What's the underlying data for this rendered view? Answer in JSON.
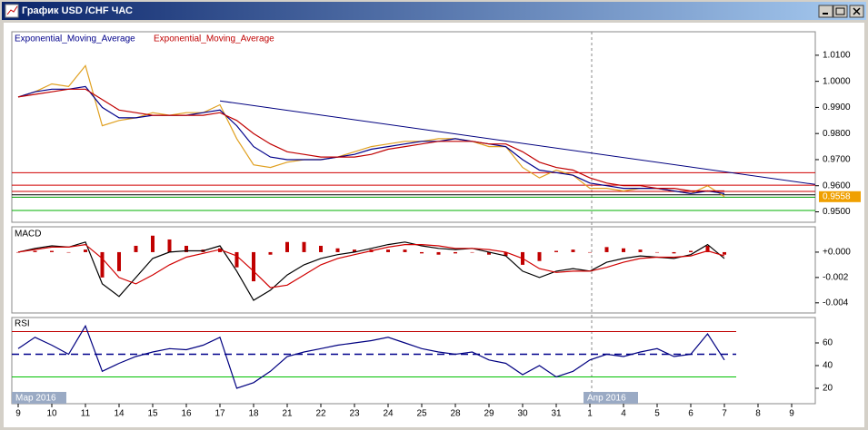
{
  "window": {
    "title": "График USD /CHF ЧАС"
  },
  "x_axis": {
    "categories": [
      "9",
      "10",
      "11",
      "14",
      "15",
      "16",
      "17",
      "18",
      "21",
      "22",
      "23",
      "24",
      "25",
      "28",
      "29",
      "30",
      "31",
      "1",
      "4",
      "5",
      "6",
      "7",
      "8",
      "9"
    ],
    "month_labels": [
      "Мар 2016",
      "Апр 2016"
    ],
    "month_starts": [
      0,
      17
    ],
    "x": [
      0,
      0.5,
      1,
      1.5,
      2,
      2.5,
      3,
      3.5,
      4,
      4.5,
      5,
      5.5,
      6,
      6.5,
      7,
      7.5,
      8,
      8.5,
      9,
      9.5,
      10,
      10.5,
      11,
      11.5,
      12,
      12.5,
      13,
      13.5,
      14,
      14.5,
      15,
      15.5,
      16,
      16.5,
      17,
      17.5,
      18,
      18.5,
      19,
      19.5,
      20,
      20.5,
      21
    ]
  },
  "chart_data": [
    {
      "type": "line",
      "ylim": [
        0.946,
        1.019
      ],
      "yticks": [
        {
          "value": 1.01,
          "label": "1.0100"
        },
        {
          "value": 1.0,
          "label": "1.0000"
        },
        {
          "value": 0.99,
          "label": "0.9900"
        },
        {
          "value": 0.98,
          "label": "0.9800"
        },
        {
          "value": 0.97,
          "label": "0.9700"
        },
        {
          "value": 0.96,
          "label": "0.9600"
        },
        {
          "value": 0.95,
          "label": "0.9500"
        }
      ],
      "current_price": 0.9558,
      "series": [
        {
          "color": "#e0a020",
          "values": [
            0.994,
            0.996,
            0.999,
            0.998,
            1.006,
            0.983,
            0.985,
            0.986,
            0.988,
            0.987,
            0.988,
            0.988,
            0.991,
            0.978,
            0.968,
            0.967,
            0.969,
            0.97,
            0.97,
            0.971,
            0.973,
            0.975,
            0.976,
            0.977,
            0.977,
            0.978,
            0.978,
            0.977,
            0.975,
            0.975,
            0.967,
            0.963,
            0.966,
            0.964,
            0.959,
            0.959,
            0.958,
            0.959,
            0.959,
            0.958,
            0.957,
            0.96,
            0.9558
          ]
        },
        {
          "name": "Exponential_Moving_Average",
          "color": "#00008b",
          "values": [
            0.994,
            0.996,
            0.997,
            0.997,
            0.998,
            0.99,
            0.986,
            0.986,
            0.987,
            0.987,
            0.987,
            0.988,
            0.989,
            0.983,
            0.975,
            0.971,
            0.97,
            0.97,
            0.97,
            0.971,
            0.972,
            0.974,
            0.975,
            0.976,
            0.977,
            0.977,
            0.978,
            0.977,
            0.976,
            0.975,
            0.97,
            0.966,
            0.965,
            0.964,
            0.961,
            0.96,
            0.959,
            0.959,
            0.959,
            0.958,
            0.957,
            0.958,
            0.957
          ]
        },
        {
          "name": "Exponential_Moving_Average",
          "color": "#c00000",
          "values": [
            0.994,
            0.995,
            0.996,
            0.997,
            0.997,
            0.993,
            0.989,
            0.988,
            0.987,
            0.987,
            0.987,
            0.987,
            0.988,
            0.985,
            0.98,
            0.976,
            0.973,
            0.972,
            0.971,
            0.971,
            0.971,
            0.972,
            0.974,
            0.975,
            0.976,
            0.977,
            0.977,
            0.977,
            0.976,
            0.976,
            0.973,
            0.969,
            0.967,
            0.966,
            0.963,
            0.961,
            0.96,
            0.96,
            0.959,
            0.959,
            0.958,
            0.958,
            0.958
          ]
        }
      ],
      "trend_line": {
        "color": "#000080",
        "x": [
          6,
          23.7
        ],
        "values": [
          0.9925,
          0.9605
        ]
      },
      "levels": [
        {
          "value": 0.965,
          "color": "#d00000"
        },
        {
          "value": 0.9602,
          "color": "#d00000"
        },
        {
          "value": 0.9578,
          "color": "#d00000"
        },
        {
          "value": 0.9565,
          "color": "#000000"
        },
        {
          "value": 0.9556,
          "color": "#00a000"
        },
        {
          "value": 0.9505,
          "color": "#00b000"
        }
      ]
    },
    {
      "type": "macd",
      "title": "MACD",
      "ylim": [
        -0.0048,
        0.002
      ],
      "yticks": [
        {
          "value": 0,
          "label": "+0.000"
        },
        -0.002,
        -0.004
      ],
      "histogram": {
        "color": "#c00000",
        "values": [
          0,
          0.0001,
          0.0001,
          0,
          0.0002,
          -0.002,
          -0.0015,
          0.0005,
          0.0013,
          0.001,
          0.0005,
          0.0002,
          0.0003,
          -0.0012,
          -0.0023,
          -0.0002,
          0.0008,
          0.0008,
          0.0005,
          0.0003,
          0.0002,
          0.0002,
          0.0002,
          0.0002,
          -0.0001,
          -0.0002,
          -0.0001,
          0,
          -0.0002,
          -0.0003,
          -0.001,
          -0.0007,
          0.0001,
          0.0002,
          0,
          0.0004,
          0.0003,
          0.0002,
          0,
          -0.0001,
          0.0001,
          0.0005,
          -0.0002
        ]
      },
      "series": [
        {
          "color": "#000000",
          "values": [
            0,
            0.0003,
            0.0005,
            0.0004,
            0.0008,
            -0.0025,
            -0.0035,
            -0.002,
            -0.0005,
            0,
            0.0001,
            0.0001,
            0.0005,
            -0.0015,
            -0.0038,
            -0.003,
            -0.0018,
            -0.001,
            -0.0005,
            -0.0002,
            0,
            0.0003,
            0.0006,
            0.0008,
            0.0005,
            0.0003,
            0.0002,
            0.0003,
            0,
            -0.0003,
            -0.0015,
            -0.002,
            -0.0015,
            -0.0013,
            -0.0015,
            -0.0008,
            -0.0005,
            -0.0003,
            -0.0004,
            -0.0005,
            -0.0002,
            0.0006,
            -0.0005
          ]
        },
        {
          "color": "#d00000",
          "values": [
            0,
            0.0002,
            0.0004,
            0.0004,
            0.0006,
            -0.0005,
            -0.002,
            -0.0025,
            -0.0018,
            -0.001,
            -0.0004,
            -0.0001,
            0.0002,
            -0.0003,
            -0.0015,
            -0.0028,
            -0.0026,
            -0.0018,
            -0.001,
            -0.0005,
            -0.0002,
            0.0001,
            0.0004,
            0.0006,
            0.0006,
            0.0005,
            0.0003,
            0.0003,
            0.0002,
            0,
            -0.0005,
            -0.0013,
            -0.0016,
            -0.0015,
            -0.0015,
            -0.0012,
            -0.0008,
            -0.0005,
            -0.0004,
            -0.0004,
            -0.0003,
            0.0001,
            -0.0003
          ]
        }
      ]
    },
    {
      "type": "line",
      "title": "RSI",
      "ylim": [
        6.4,
        82.4
      ],
      "yticks": [
        60,
        40,
        20
      ],
      "levels": [
        {
          "value": 70,
          "color": "#c00000"
        },
        {
          "value": 50,
          "color": "#00008b",
          "dash": true
        },
        {
          "value": 30,
          "color": "#00c000"
        }
      ],
      "series": [
        {
          "color": "#000080",
          "values": [
            55,
            65,
            58,
            50,
            75,
            35,
            42,
            48,
            52,
            55,
            54,
            58,
            65,
            20,
            25,
            35,
            48,
            52,
            55,
            58,
            60,
            62,
            65,
            60,
            55,
            52,
            50,
            52,
            45,
            42,
            32,
            40,
            30,
            35,
            45,
            50,
            48,
            52,
            55,
            48,
            50,
            68,
            45
          ]
        }
      ]
    }
  ]
}
